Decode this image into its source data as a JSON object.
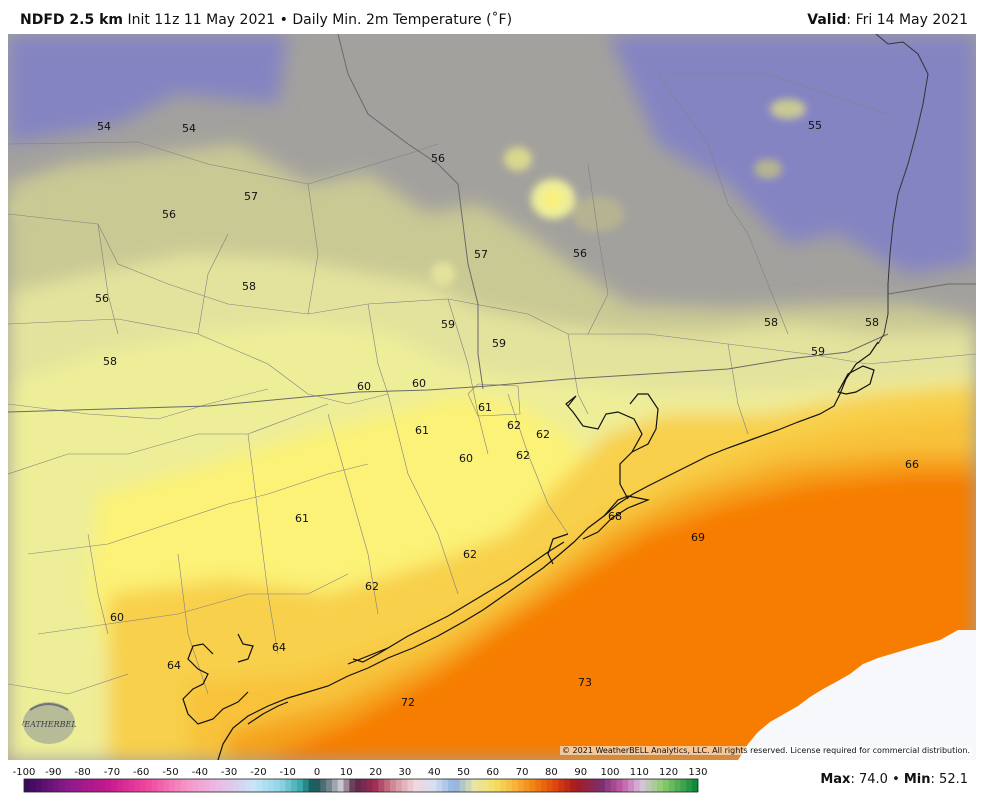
{
  "header": {
    "model": "NDFD 2.5 km",
    "init": "Init 11z 11 May 2021",
    "bullet": "•",
    "product": "Daily Min. 2m Temperature (˚F)",
    "valid_label": "Valid",
    "valid_value": ": Fri 14 May 2021"
  },
  "labels": [
    {
      "text": "54"
    },
    {
      "text": "54"
    },
    {
      "text": "56"
    },
    {
      "text": "55"
    },
    {
      "text": "57"
    },
    {
      "text": "56"
    },
    {
      "text": "57"
    },
    {
      "text": "56"
    },
    {
      "text": "56"
    },
    {
      "text": "58"
    },
    {
      "text": "59"
    },
    {
      "text": "59"
    },
    {
      "text": "58"
    },
    {
      "text": "58"
    },
    {
      "text": "59"
    },
    {
      "text": "58"
    },
    {
      "text": "60"
    },
    {
      "text": "60"
    },
    {
      "text": "61"
    },
    {
      "text": "62"
    },
    {
      "text": "62"
    },
    {
      "text": "61"
    },
    {
      "text": "60"
    },
    {
      "text": "62"
    },
    {
      "text": "66"
    },
    {
      "text": "68"
    },
    {
      "text": "61"
    },
    {
      "text": "69"
    },
    {
      "text": "62"
    },
    {
      "text": "62"
    },
    {
      "text": "60"
    },
    {
      "text": "64"
    },
    {
      "text": "64"
    },
    {
      "text": "73"
    },
    {
      "text": "72"
    }
  ],
  "copyright": "© 2021 WeatherBELL Analytics, LLC. All rights reserved. License required for commercial distribution.",
  "logo_text": "WEATHERBELL",
  "colorbar": {
    "ticks": [
      "-100",
      "-90",
      "-80",
      "-70",
      "-60",
      "-50",
      "-40",
      "-30",
      "-20",
      "-10",
      "0",
      "10",
      "20",
      "30",
      "40",
      "50",
      "60",
      "70",
      "80",
      "90",
      "100",
      "110",
      "120",
      "130"
    ]
  },
  "stats": {
    "max_label": "Max",
    "max_value": ": 74.0",
    "bullet": "•",
    "min_label": "Min",
    "min_value": ": 52.1"
  },
  "palette": {
    "cold_purple": "#8584c3",
    "grey": "#a3a19d",
    "olive": "#c9c994",
    "pale_yellow": "#eeee99",
    "yellow": "#fbf277",
    "gold": "#f8c23a",
    "orange": "#f5a21a",
    "deep_orange": "#f67d00",
    "no_data": "#f7f8fb"
  }
}
